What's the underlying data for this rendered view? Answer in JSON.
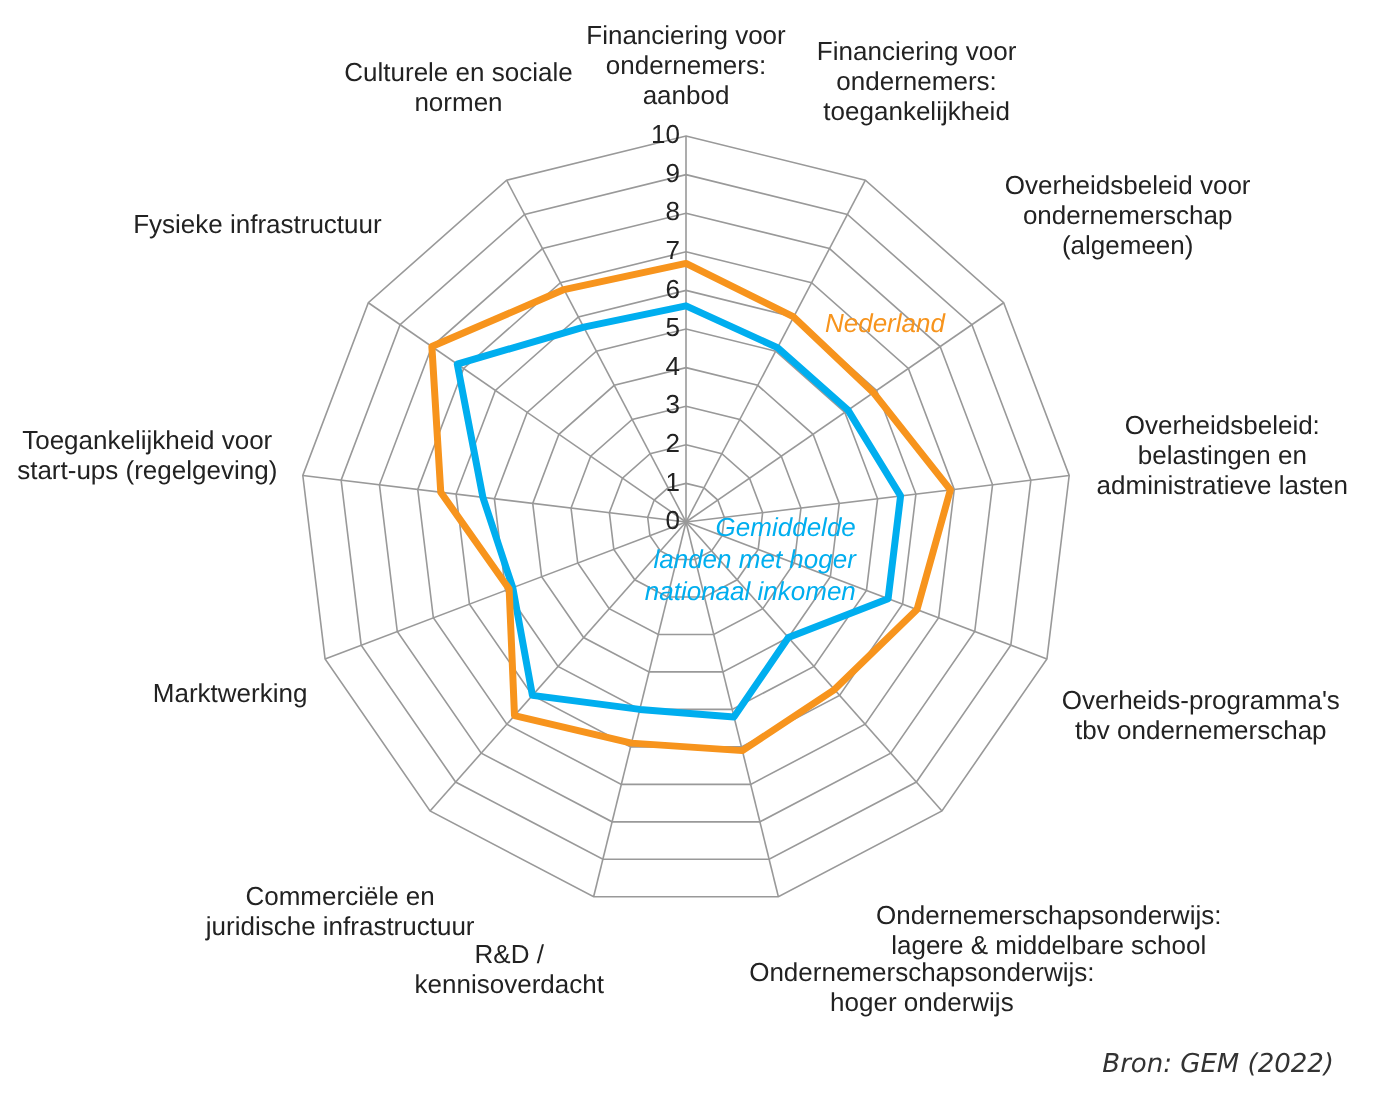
{
  "chart_data": {
    "type": "radar",
    "categories": [
      "Financiering voor ondernemers: aanbod",
      "Financiering voor ondernemers: toegankelijkheid",
      "Overheidsbeleid voor ondernemerschap (algemeen)",
      "Overheidsbeleid: belastingen en administratieve lasten",
      "Overheids-programma's tbv ondernemerschap",
      "Ondernemerschapsonderwijs: lagere & middelbare school",
      "Ondernemerschapsonderwijs: hoger onderwijs",
      "R&D / kennisoverdacht",
      "Commerciële en juridische infrastructuur",
      "Marktwerking",
      "Toegankelijkheid voor start-ups (regelgeving)",
      "Fysieke infrastructuur",
      "Culturele en sociale normen"
    ],
    "series": [
      {
        "name": "Nederland",
        "color": "#f7941d",
        "values": [
          6.7,
          6.0,
          5.9,
          6.9,
          6.4,
          5.8,
          6.1,
          5.9,
          6.7,
          4.9,
          6.4,
          8.0,
          6.8
        ]
      },
      {
        "name": "Gemiddelde landen met hoger nationaal inkomen",
        "color": "#00aeef",
        "values": [
          5.6,
          5.1,
          5.1,
          5.6,
          5.6,
          4.0,
          5.2,
          5.0,
          6.0,
          4.8,
          5.3,
          7.2,
          5.7
        ]
      }
    ],
    "ylim": [
      0,
      10
    ],
    "yticks": [
      0,
      1,
      2,
      3,
      4,
      5,
      6,
      7,
      8,
      9,
      10
    ],
    "grid": true,
    "legend": false,
    "annotations": [
      "Bron: GEM (2022)"
    ]
  }
}
